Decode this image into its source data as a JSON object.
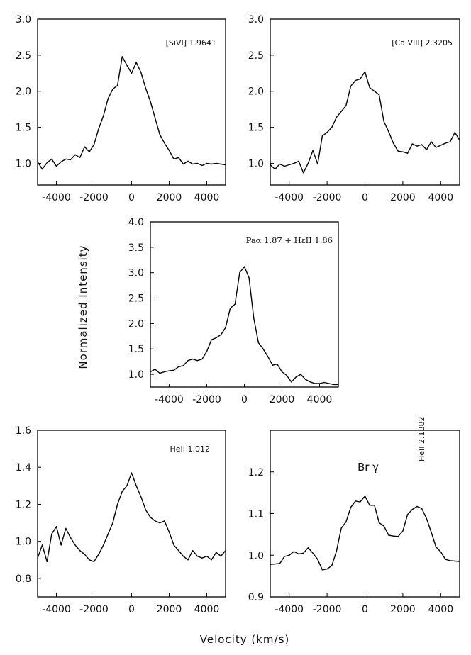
{
  "figure": {
    "ylabel": "Normalized Intensity",
    "xlabel": "Velocity (km/s)"
  },
  "chart_data": [
    {
      "type": "line",
      "annotation": "[SiVI] 1.9641",
      "xlim": [
        -5000,
        5000
      ],
      "ylim": [
        0.7,
        3.0
      ],
      "xticks": [
        -4000,
        -2000,
        0,
        2000,
        4000
      ],
      "xtick_labels": [
        "-4000",
        "-2000",
        "0",
        "2000",
        "4000"
      ],
      "yticks": [
        1.0,
        1.5,
        2.0,
        2.5,
        3.0
      ],
      "ytick_labels": [
        "1.0",
        "1.5",
        "2.0",
        "2.5",
        "3.0"
      ],
      "x": [
        -5000,
        -4750,
        -4500,
        -4250,
        -4000,
        -3750,
        -3500,
        -3250,
        -3000,
        -2750,
        -2500,
        -2250,
        -2000,
        -1750,
        -1500,
        -1250,
        -1000,
        -750,
        -500,
        -250,
        0,
        250,
        500,
        750,
        1000,
        1250,
        1500,
        1750,
        2000,
        2250,
        2500,
        2750,
        3000,
        3250,
        3500,
        3750,
        4000,
        4250,
        4500,
        4750,
        5000
      ],
      "y": [
        1.02,
        0.92,
        1.01,
        1.06,
        0.96,
        1.02,
        1.06,
        1.05,
        1.12,
        1.08,
        1.23,
        1.16,
        1.26,
        1.48,
        1.66,
        1.9,
        2.03,
        2.08,
        2.48,
        2.36,
        2.25,
        2.4,
        2.26,
        2.04,
        1.86,
        1.63,
        1.4,
        1.28,
        1.18,
        1.06,
        1.08,
        0.99,
        1.03,
        0.99,
        1.0,
        0.97,
        1.0,
        0.99,
        1.0,
        0.99,
        0.98
      ]
    },
    {
      "type": "line",
      "annotation": "[Ca VIII] 2.3205",
      "xlim": [
        -5000,
        5000
      ],
      "ylim": [
        0.7,
        3.0
      ],
      "xticks": [
        -4000,
        -2000,
        0,
        2000,
        4000
      ],
      "xtick_labels": [
        "-4000",
        "-2000",
        "0",
        "2000",
        "4000"
      ],
      "yticks": [
        1.0,
        1.5,
        2.0,
        2.5,
        3.0
      ],
      "ytick_labels": [
        "1.0",
        "1.5",
        "2.0",
        "2.5",
        "3.0"
      ],
      "x": [
        -5000,
        -4750,
        -4500,
        -4250,
        -4000,
        -3750,
        -3500,
        -3250,
        -3000,
        -2750,
        -2500,
        -2250,
        -2000,
        -1750,
        -1500,
        -1250,
        -1000,
        -750,
        -500,
        -250,
        0,
        250,
        500,
        750,
        1000,
        1250,
        1500,
        1750,
        2000,
        2250,
        2500,
        2750,
        3000,
        3250,
        3500,
        3750,
        4000,
        4250,
        4500,
        4750,
        5000
      ],
      "y": [
        0.98,
        0.92,
        0.99,
        0.96,
        0.98,
        1.0,
        1.03,
        0.87,
        1.0,
        1.18,
        0.99,
        1.38,
        1.43,
        1.5,
        1.64,
        1.72,
        1.8,
        2.07,
        2.15,
        2.17,
        2.27,
        2.05,
        2.0,
        1.95,
        1.58,
        1.44,
        1.28,
        1.17,
        1.16,
        1.14,
        1.27,
        1.24,
        1.26,
        1.19,
        1.3,
        1.22,
        1.25,
        1.28,
        1.3,
        1.43,
        1.32
      ]
    },
    {
      "type": "line",
      "annotation": "Paα 1.87 + HεII 1.86",
      "xlim": [
        -5000,
        5000
      ],
      "ylim": [
        0.75,
        4.0
      ],
      "xticks": [
        -4000,
        -2000,
        0,
        2000,
        4000
      ],
      "xtick_labels": [
        "-4000",
        "-2000",
        "0",
        "2000",
        "4000"
      ],
      "yticks": [
        1.0,
        1.5,
        2.0,
        2.5,
        3.0,
        3.5,
        4.0
      ],
      "ytick_labels": [
        "1.0",
        "1.5",
        "2.0",
        "2.5",
        "3.0",
        "3.5",
        "4.0"
      ],
      "x": [
        -5000,
        -4750,
        -4500,
        -4250,
        -4000,
        -3750,
        -3500,
        -3250,
        -3000,
        -2750,
        -2500,
        -2250,
        -2000,
        -1750,
        -1500,
        -1250,
        -1000,
        -750,
        -500,
        -250,
        0,
        250,
        500,
        750,
        1000,
        1250,
        1500,
        1750,
        2000,
        2250,
        2500,
        2750,
        3000,
        3250,
        3500,
        3750,
        4000,
        4250,
        4500,
        4750,
        5000
      ],
      "y": [
        1.05,
        1.1,
        1.02,
        1.05,
        1.07,
        1.08,
        1.15,
        1.17,
        1.27,
        1.3,
        1.27,
        1.3,
        1.45,
        1.68,
        1.72,
        1.78,
        1.92,
        2.3,
        2.38,
        3.0,
        3.12,
        2.9,
        2.1,
        1.62,
        1.5,
        1.35,
        1.18,
        1.2,
        1.05,
        0.98,
        0.85,
        0.95,
        1.0,
        0.9,
        0.85,
        0.82,
        0.82,
        0.84,
        0.82,
        0.8,
        0.8
      ]
    },
    {
      "type": "line",
      "annotation": "HeII 1.012",
      "xlim": [
        -5000,
        5000
      ],
      "ylim": [
        0.7,
        1.6
      ],
      "xticks": [
        -4000,
        -2000,
        0,
        2000,
        4000
      ],
      "xtick_labels": [
        "-4000",
        "-2000",
        "0",
        "2000",
        "4000"
      ],
      "yticks": [
        0.8,
        1.0,
        1.2,
        1.4,
        1.6
      ],
      "ytick_labels": [
        "0.8",
        "1.0",
        "1.2",
        "1.4",
        "1.6"
      ],
      "x": [
        -5000,
        -4750,
        -4500,
        -4250,
        -4000,
        -3750,
        -3500,
        -3250,
        -3000,
        -2750,
        -2500,
        -2250,
        -2000,
        -1750,
        -1500,
        -1250,
        -1000,
        -750,
        -500,
        -250,
        0,
        250,
        500,
        750,
        1000,
        1250,
        1500,
        1750,
        2000,
        2250,
        2500,
        2750,
        3000,
        3250,
        3500,
        3750,
        4000,
        4250,
        4500,
        4750,
        5000
      ],
      "y": [
        0.91,
        0.98,
        0.89,
        1.04,
        1.08,
        0.98,
        1.07,
        1.02,
        0.98,
        0.95,
        0.93,
        0.9,
        0.89,
        0.93,
        0.98,
        1.04,
        1.1,
        1.2,
        1.27,
        1.3,
        1.37,
        1.3,
        1.24,
        1.17,
        1.13,
        1.11,
        1.1,
        1.11,
        1.05,
        0.98,
        0.95,
        0.92,
        0.9,
        0.95,
        0.92,
        0.91,
        0.92,
        0.9,
        0.94,
        0.92,
        0.95
      ]
    },
    {
      "type": "line",
      "annotation": "Br γ",
      "annotation2": "HeII 2.1882",
      "xlim": [
        -5000,
        5000
      ],
      "ylim": [
        0.9,
        1.3
      ],
      "xticks": [
        -4000,
        -2000,
        0,
        2000,
        4000
      ],
      "xtick_labels": [
        "-4000",
        "-2000",
        "0",
        "2000",
        "4000"
      ],
      "yticks": [
        0.9,
        1.0,
        1.1,
        1.2
      ],
      "ytick_labels": [
        "0.9",
        "1.0",
        "1.1",
        "1.2"
      ],
      "x": [
        -5000,
        -4750,
        -4500,
        -4250,
        -4000,
        -3750,
        -3500,
        -3250,
        -3000,
        -2750,
        -2500,
        -2250,
        -2000,
        -1750,
        -1500,
        -1250,
        -1000,
        -750,
        -500,
        -250,
        0,
        250,
        500,
        750,
        1000,
        1250,
        1500,
        1750,
        2000,
        2250,
        2500,
        2750,
        3000,
        3250,
        3500,
        3750,
        4000,
        4250,
        4500,
        4750,
        5000
      ],
      "y": [
        0.978,
        0.979,
        0.98,
        0.997,
        1.0,
        1.009,
        1.003,
        1.005,
        1.018,
        1.005,
        0.99,
        0.965,
        0.967,
        0.975,
        1.01,
        1.065,
        1.08,
        1.115,
        1.13,
        1.128,
        1.142,
        1.12,
        1.12,
        1.078,
        1.07,
        1.048,
        1.046,
        1.045,
        1.058,
        1.098,
        1.11,
        1.117,
        1.112,
        1.088,
        1.055,
        1.02,
        1.008,
        0.99,
        0.987,
        0.986,
        0.985
      ]
    }
  ]
}
